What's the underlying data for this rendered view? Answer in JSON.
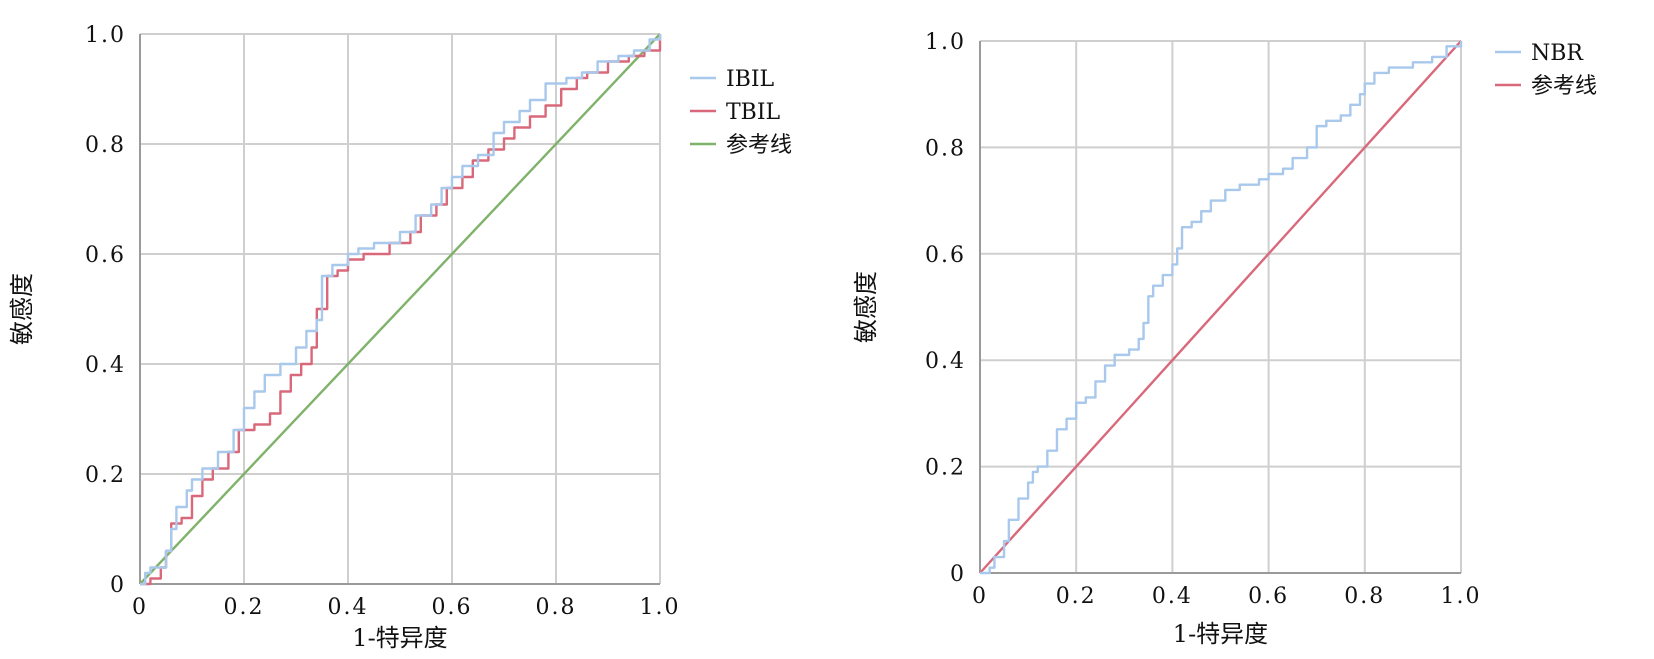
{
  "chart_data": [
    {
      "type": "line",
      "title": "",
      "xlabel": "1-特异度",
      "ylabel": "敏感度",
      "xlim": [
        0,
        1
      ],
      "ylim": [
        0,
        1
      ],
      "grid": true,
      "legend_position": "right",
      "x_tick_labels": [
        "0",
        "0.2",
        "0.4",
        "0.6",
        "0.8",
        "1.0"
      ],
      "y_tick_labels": [
        "0",
        "0.2",
        "0.4",
        "0.6",
        "0.8",
        "1.0"
      ],
      "series": [
        {
          "name": "IBIL",
          "color": "#a8c8ec",
          "points": [
            [
              0,
              0
            ],
            [
              0.01,
              0.02
            ],
            [
              0.02,
              0.03
            ],
            [
              0.04,
              0.03
            ],
            [
              0.05,
              0.06
            ],
            [
              0.06,
              0.1
            ],
            [
              0.07,
              0.14
            ],
            [
              0.09,
              0.17
            ],
            [
              0.1,
              0.19
            ],
            [
              0.12,
              0.21
            ],
            [
              0.15,
              0.24
            ],
            [
              0.18,
              0.28
            ],
            [
              0.2,
              0.32
            ],
            [
              0.22,
              0.35
            ],
            [
              0.24,
              0.38
            ],
            [
              0.27,
              0.4
            ],
            [
              0.3,
              0.43
            ],
            [
              0.32,
              0.46
            ],
            [
              0.34,
              0.48
            ],
            [
              0.35,
              0.56
            ],
            [
              0.37,
              0.58
            ],
            [
              0.4,
              0.6
            ],
            [
              0.42,
              0.61
            ],
            [
              0.45,
              0.62
            ],
            [
              0.5,
              0.64
            ],
            [
              0.53,
              0.67
            ],
            [
              0.56,
              0.69
            ],
            [
              0.58,
              0.72
            ],
            [
              0.6,
              0.74
            ],
            [
              0.62,
              0.76
            ],
            [
              0.65,
              0.78
            ],
            [
              0.68,
              0.82
            ],
            [
              0.7,
              0.84
            ],
            [
              0.73,
              0.86
            ],
            [
              0.75,
              0.88
            ],
            [
              0.78,
              0.91
            ],
            [
              0.82,
              0.92
            ],
            [
              0.85,
              0.93
            ],
            [
              0.88,
              0.95
            ],
            [
              0.92,
              0.96
            ],
            [
              0.95,
              0.97
            ],
            [
              0.98,
              0.99
            ],
            [
              1,
              1
            ]
          ]
        },
        {
          "name": "TBIL",
          "color": "#d9687a",
          "points": [
            [
              0,
              0
            ],
            [
              0.02,
              0.01
            ],
            [
              0.04,
              0.03
            ],
            [
              0.05,
              0.06
            ],
            [
              0.06,
              0.11
            ],
            [
              0.08,
              0.12
            ],
            [
              0.1,
              0.16
            ],
            [
              0.12,
              0.19
            ],
            [
              0.14,
              0.21
            ],
            [
              0.17,
              0.24
            ],
            [
              0.19,
              0.28
            ],
            [
              0.22,
              0.29
            ],
            [
              0.25,
              0.31
            ],
            [
              0.27,
              0.35
            ],
            [
              0.29,
              0.38
            ],
            [
              0.31,
              0.4
            ],
            [
              0.33,
              0.43
            ],
            [
              0.34,
              0.5
            ],
            [
              0.36,
              0.56
            ],
            [
              0.38,
              0.57
            ],
            [
              0.4,
              0.59
            ],
            [
              0.43,
              0.6
            ],
            [
              0.46,
              0.6
            ],
            [
              0.48,
              0.62
            ],
            [
              0.52,
              0.64
            ],
            [
              0.54,
              0.67
            ],
            [
              0.57,
              0.69
            ],
            [
              0.59,
              0.72
            ],
            [
              0.62,
              0.74
            ],
            [
              0.64,
              0.77
            ],
            [
              0.67,
              0.79
            ],
            [
              0.7,
              0.81
            ],
            [
              0.72,
              0.83
            ],
            [
              0.75,
              0.85
            ],
            [
              0.78,
              0.87
            ],
            [
              0.81,
              0.9
            ],
            [
              0.84,
              0.92
            ],
            [
              0.86,
              0.93
            ],
            [
              0.9,
              0.95
            ],
            [
              0.94,
              0.96
            ],
            [
              0.97,
              0.97
            ],
            [
              1,
              1
            ]
          ]
        },
        {
          "name": "参考线",
          "color": "#7fb26a",
          "points": [
            [
              0,
              0
            ],
            [
              1,
              1
            ]
          ]
        }
      ]
    },
    {
      "type": "line",
      "title": "",
      "xlabel": "1-特异度",
      "ylabel": "敏感度",
      "xlim": [
        0,
        1
      ],
      "ylim": [
        0,
        1
      ],
      "grid": true,
      "legend_position": "right",
      "x_tick_labels": [
        "0",
        "0.2",
        "0.4",
        "0.6",
        "0.8",
        "1.0"
      ],
      "y_tick_labels": [
        "0",
        "0.2",
        "0.4",
        "0.6",
        "0.8",
        "1.0"
      ],
      "series": [
        {
          "name": "NBR",
          "color": "#a8c8ec",
          "points": [
            [
              0,
              0
            ],
            [
              0.02,
              0.01
            ],
            [
              0.03,
              0.03
            ],
            [
              0.05,
              0.06
            ],
            [
              0.06,
              0.1
            ],
            [
              0.08,
              0.14
            ],
            [
              0.1,
              0.17
            ],
            [
              0.11,
              0.19
            ],
            [
              0.12,
              0.2
            ],
            [
              0.14,
              0.23
            ],
            [
              0.16,
              0.27
            ],
            [
              0.18,
              0.29
            ],
            [
              0.2,
              0.32
            ],
            [
              0.22,
              0.33
            ],
            [
              0.24,
              0.36
            ],
            [
              0.26,
              0.39
            ],
            [
              0.28,
              0.41
            ],
            [
              0.31,
              0.42
            ],
            [
              0.33,
              0.44
            ],
            [
              0.34,
              0.47
            ],
            [
              0.35,
              0.52
            ],
            [
              0.36,
              0.54
            ],
            [
              0.38,
              0.56
            ],
            [
              0.4,
              0.58
            ],
            [
              0.41,
              0.61
            ],
            [
              0.42,
              0.65
            ],
            [
              0.44,
              0.66
            ],
            [
              0.46,
              0.68
            ],
            [
              0.48,
              0.7
            ],
            [
              0.51,
              0.72
            ],
            [
              0.54,
              0.73
            ],
            [
              0.58,
              0.74
            ],
            [
              0.6,
              0.75
            ],
            [
              0.63,
              0.76
            ],
            [
              0.65,
              0.78
            ],
            [
              0.68,
              0.8
            ],
            [
              0.7,
              0.84
            ],
            [
              0.72,
              0.85
            ],
            [
              0.75,
              0.86
            ],
            [
              0.77,
              0.88
            ],
            [
              0.79,
              0.9
            ],
            [
              0.8,
              0.92
            ],
            [
              0.82,
              0.94
            ],
            [
              0.85,
              0.95
            ],
            [
              0.9,
              0.96
            ],
            [
              0.94,
              0.97
            ],
            [
              0.97,
              0.99
            ],
            [
              1,
              1
            ]
          ]
        },
        {
          "name": "参考线",
          "color": "#d9687a",
          "points": [
            [
              0,
              0
            ],
            [
              1,
              1
            ]
          ]
        }
      ]
    }
  ]
}
